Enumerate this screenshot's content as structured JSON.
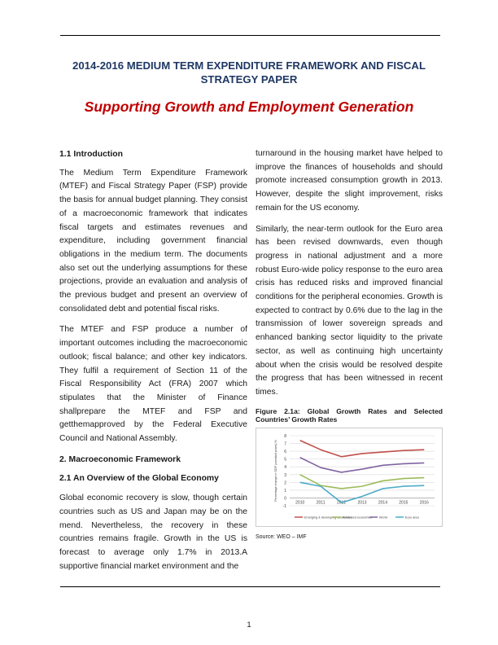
{
  "header": {
    "title": "2014-2016 MEDIUM TERM EXPENDITURE FRAMEWORK AND FISCAL STRATEGY PAPER",
    "subtitle": "Supporting Growth and Employment Generation"
  },
  "left_column": {
    "intro_heading": "1.1 Introduction",
    "intro_p1": "The Medium Term Expenditure Framework (MTEF) and Fiscal Strategy Paper (FSP) provide the basis for annual budget planning. They consist of a macroeconomic framework that indicates fiscal targets and estimates revenues and expenditure, including government financial obligations in the medium term. The documents also set out the underlying assumptions for these projections, provide an evaluation and analysis of the previous budget and present an overview of consolidated debt and potential fiscal risks.",
    "intro_p2": "The MTEF and FSP produce a number of important outcomes including the macroeconomic outlook; fiscal balance; and other key indicators. They fulfil a requirement of Section 11 of the Fiscal Responsibility Act (FRA) 2007 which stipulates that the Minister of Finance shallprepare the MTEF and FSP and getthemapproved by the Federal Executive Council and National Assembly.",
    "section_heading": "2.   Macroeconomic Framework",
    "subsection_heading": "2.1  An Overview  of the Global Economy",
    "overview_p1": "Global economic recovery is slow, though certain countries such as US and Japan may be on the mend. Nevertheless, the recovery in these countries remains fragile. Growth in the US is forecast to average only 1.7% in 2013.A supportive financial market environment and the"
  },
  "right_column": {
    "p1": "turnaround in the housing market have helped to improve the finances of households and should promote increased consumption growth in 2013. However, despite the slight improvement, risks remain for the US economy.",
    "p2": "Similarly, the near-term outlook for the Euro area has been revised downwards, even though progress in national adjustment and a more robust Euro-wide policy response to the euro area crisis has reduced risks and improved financial conditions for the peripheral economies. Growth is expected to contract by 0.6% due to the lag in the transmission of lower sovereign spreads and enhanced banking sector liquidity to the private sector, as well as continuing high uncertainty about when the crisis would be resolved despite the progress that has been witnessed in recent times.",
    "figure_caption": "Figure 2.1a: Global Growth Rates and Selected Countries’ Growth Rates",
    "source": "Source: WEO – IMF"
  },
  "footer": {
    "page_number": "1"
  },
  "chart_data": {
    "type": "line",
    "title": "",
    "xlabel": "",
    "ylabel": "Percentage change in GDP (constant prices) %",
    "x": [
      "2010",
      "2011",
      "2012",
      "2013",
      "2014",
      "2015",
      "2016"
    ],
    "ylim": [
      -1,
      8
    ],
    "yticks": [
      "-1",
      "0",
      "1",
      "2",
      "3",
      "4",
      "5",
      "6",
      "7",
      "8"
    ],
    "grid": true,
    "legend_position": "bottom",
    "series": [
      {
        "name": "Emerging & developing economies",
        "color": "#c0504d",
        "values": [
          7.4,
          6.2,
          5.3,
          5.7,
          5.9,
          6.1,
          6.2
        ]
      },
      {
        "name": "Advanced economies",
        "color": "#9bbb59",
        "values": [
          3.0,
          1.6,
          1.2,
          1.5,
          2.2,
          2.5,
          2.6
        ]
      },
      {
        "name": "World",
        "color": "#8064a2",
        "values": [
          5.2,
          3.9,
          3.3,
          3.7,
          4.2,
          4.4,
          4.5
        ]
      },
      {
        "name": "Euro area",
        "color": "#4bacc6",
        "values": [
          2.0,
          1.5,
          -0.6,
          0.2,
          1.2,
          1.5,
          1.6
        ]
      }
    ]
  }
}
